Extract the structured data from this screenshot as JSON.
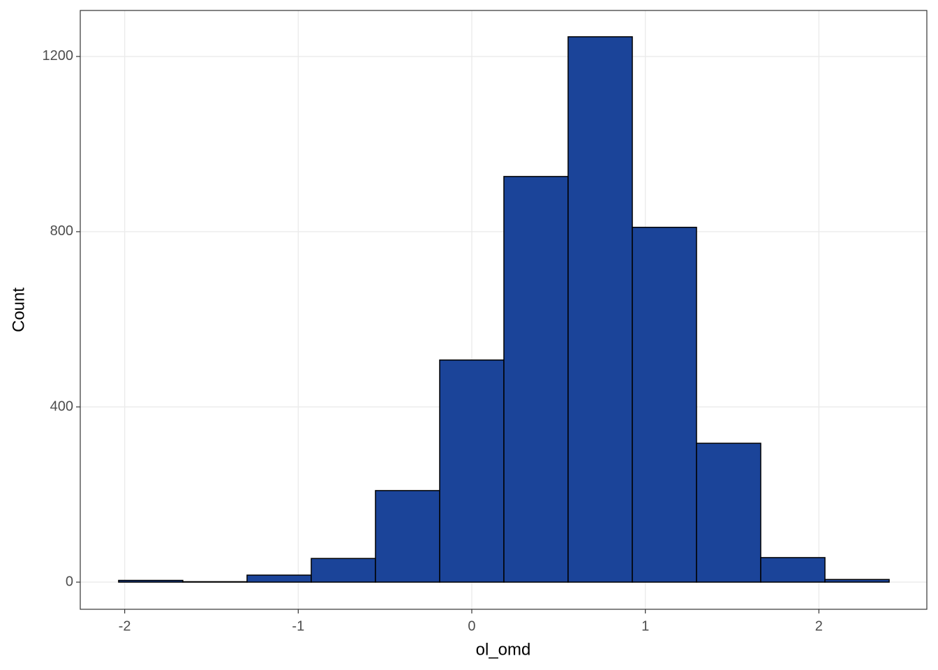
{
  "chart_data": {
    "type": "histogram",
    "x_label": "ol_omd",
    "y_label": "Count",
    "bins": [
      -2.035,
      -1.665,
      -1.295,
      -0.925,
      -0.555,
      -0.185,
      0.185,
      0.555,
      0.925,
      1.295,
      1.665,
      2.035,
      2.405
    ],
    "values": [
      4,
      1,
      16,
      54,
      209,
      507,
      926,
      1245,
      810,
      317,
      56,
      6
    ],
    "color": "#1b4499",
    "edge_color": "#000000",
    "xlim": [
      -2.256,
      2.622
    ],
    "ylim": [
      -62,
      1305
    ],
    "xticks": [
      -2,
      -1,
      0,
      1,
      2
    ],
    "yticks": [
      0,
      400,
      800,
      1200
    ],
    "grid": true
  }
}
